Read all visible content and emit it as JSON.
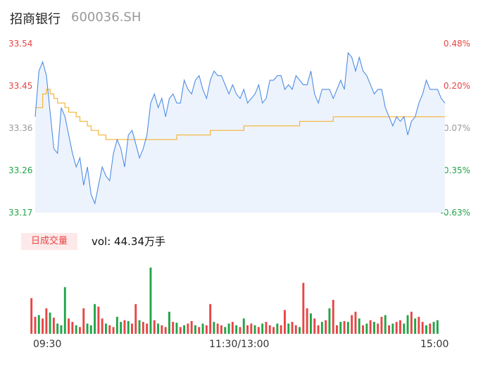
{
  "header": {
    "name": "招商银行",
    "code": "600036.SH"
  },
  "colors": {
    "up": "#e84545",
    "down": "#22a447",
    "neutral": "#999999",
    "price_line": "#4e8de6",
    "avg_line": "#f5b335",
    "area": "#edf3fc",
    "vol_label_bg": "#fde9e9"
  },
  "volume_panel": {
    "label": "日成交量",
    "text": "vol: 44.34万手"
  },
  "chart_data": {
    "type": "line",
    "price_axis": {
      "ylim": [
        33.17,
        33.54
      ],
      "ticks": [
        "33.54",
        "33.45",
        "33.36",
        "33.26",
        "33.17"
      ]
    },
    "pct_axis": {
      "ticks": [
        "0.48%",
        "0.20%",
        "-0.07%",
        "-0.35%",
        "-0.63%"
      ]
    },
    "time_labels": [
      "09:30",
      "11:30/13:00",
      "15:00"
    ],
    "series": [
      {
        "role": "price",
        "values": [
          33.38,
          33.48,
          33.5,
          33.47,
          33.39,
          33.31,
          33.3,
          33.4,
          33.38,
          33.34,
          33.3,
          33.27,
          33.29,
          33.23,
          33.27,
          33.21,
          33.19,
          33.23,
          33.27,
          33.25,
          33.24,
          33.3,
          33.33,
          33.31,
          33.27,
          33.34,
          33.35,
          33.32,
          33.29,
          33.31,
          33.34,
          33.41,
          33.43,
          33.4,
          33.42,
          33.38,
          33.42,
          33.43,
          33.41,
          33.41,
          33.46,
          33.44,
          33.43,
          33.46,
          33.47,
          33.44,
          33.42,
          33.46,
          33.48,
          33.47,
          33.47,
          33.45,
          33.43,
          33.45,
          33.43,
          33.42,
          33.44,
          33.41,
          33.42,
          33.43,
          33.45,
          33.41,
          33.42,
          33.46,
          33.46,
          33.47,
          33.47,
          33.44,
          33.45,
          33.44,
          33.47,
          33.46,
          33.45,
          33.45,
          33.48,
          33.43,
          33.41,
          33.44,
          33.44,
          33.44,
          33.42,
          33.44,
          33.46,
          33.44,
          33.52,
          33.51,
          33.48,
          33.51,
          33.48,
          33.47,
          33.45,
          33.43,
          33.44,
          33.44,
          33.4,
          33.38,
          33.36,
          33.38,
          33.37,
          33.38,
          33.34,
          33.37,
          33.38,
          33.41,
          33.43,
          33.46,
          33.44,
          33.44,
          33.44,
          33.42,
          33.41
        ]
      },
      {
        "role": "average",
        "values": [
          33.4,
          33.4,
          33.43,
          33.44,
          33.43,
          33.42,
          33.41,
          33.41,
          33.4,
          33.39,
          33.39,
          33.38,
          33.37,
          33.37,
          33.36,
          33.35,
          33.35,
          33.34,
          33.34,
          33.33,
          33.33,
          33.33,
          33.33,
          33.33,
          33.33,
          33.33,
          33.33,
          33.33,
          33.33,
          33.33,
          33.33,
          33.33,
          33.33,
          33.33,
          33.33,
          33.33,
          33.33,
          33.33,
          33.34,
          33.34,
          33.34,
          33.34,
          33.34,
          33.34,
          33.34,
          33.34,
          33.34,
          33.35,
          33.35,
          33.35,
          33.35,
          33.35,
          33.35,
          33.35,
          33.35,
          33.35,
          33.36,
          33.36,
          33.36,
          33.36,
          33.36,
          33.36,
          33.36,
          33.36,
          33.36,
          33.36,
          33.36,
          33.36,
          33.36,
          33.36,
          33.36,
          33.37,
          33.37,
          33.37,
          33.37,
          33.37,
          33.37,
          33.37,
          33.37,
          33.37,
          33.38,
          33.38,
          33.38,
          33.38,
          33.38,
          33.38,
          33.38,
          33.38,
          33.38,
          33.38,
          33.38,
          33.38,
          33.38,
          33.38,
          33.38,
          33.38,
          33.38,
          33.38,
          33.38,
          33.38,
          33.38,
          33.38,
          33.38,
          33.38,
          33.38,
          33.38,
          33.38,
          33.38,
          33.38,
          33.38,
          33.38
        ]
      }
    ],
    "volume": {
      "values": [
        42,
        20,
        22,
        18,
        30,
        25,
        19,
        12,
        10,
        55,
        18,
        14,
        10,
        8,
        30,
        12,
        10,
        35,
        32,
        18,
        12,
        10,
        8,
        20,
        14,
        16,
        15,
        12,
        35,
        16,
        14,
        12,
        78,
        16,
        12,
        10,
        8,
        26,
        14,
        13,
        8,
        10,
        12,
        15,
        10,
        8,
        12,
        10,
        35,
        14,
        12,
        10,
        8,
        12,
        14,
        10,
        8,
        18,
        10,
        12,
        10,
        8,
        12,
        14,
        10,
        8,
        12,
        10,
        28,
        12,
        14,
        10,
        8,
        60,
        30,
        24,
        18,
        10,
        14,
        16,
        30,
        40,
        10,
        14,
        15,
        14,
        22,
        26,
        18,
        10,
        12,
        16,
        14,
        12,
        20,
        22,
        10,
        12,
        14,
        16,
        12,
        22,
        26,
        18,
        20,
        14,
        10,
        12,
        14,
        16
      ],
      "directions": [
        "u",
        "u",
        "d",
        "u",
        "u",
        "d",
        "u",
        "d",
        "d",
        "d",
        "u",
        "u",
        "d",
        "u",
        "u",
        "d",
        "d",
        "d",
        "u",
        "u",
        "d",
        "u",
        "u",
        "d",
        "d",
        "u",
        "d",
        "u",
        "u",
        "d",
        "u",
        "u",
        "d",
        "u",
        "d",
        "u",
        "u",
        "d",
        "u",
        "d",
        "u",
        "d",
        "u",
        "u",
        "d",
        "u",
        "d",
        "u",
        "u",
        "d",
        "u",
        "u",
        "d",
        "d",
        "u",
        "d",
        "u",
        "d",
        "u",
        "u",
        "d",
        "u",
        "d",
        "u",
        "u",
        "u",
        "d",
        "u",
        "u",
        "d",
        "u",
        "u",
        "d",
        "u",
        "u",
        "d",
        "u",
        "u",
        "d",
        "u",
        "d",
        "u",
        "u",
        "d",
        "u",
        "d",
        "u",
        "u",
        "d",
        "u",
        "d",
        "u",
        "d",
        "u",
        "u",
        "d",
        "u",
        "d",
        "u",
        "u",
        "d",
        "d",
        "u",
        "d",
        "u",
        "u",
        "d",
        "u",
        "d",
        "d"
      ]
    }
  }
}
